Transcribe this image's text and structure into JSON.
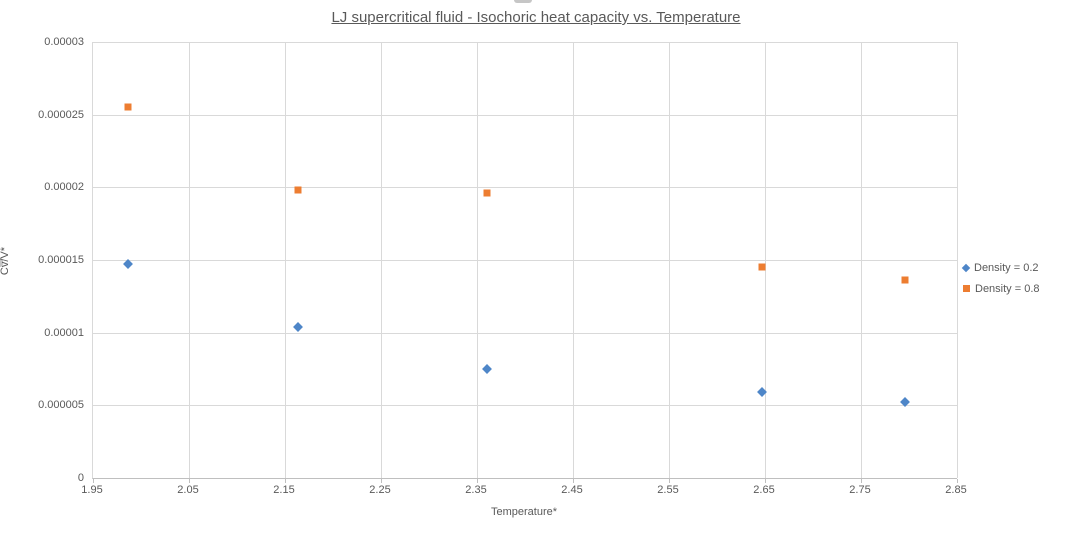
{
  "chart_data": {
    "type": "scatter",
    "title": "LJ supercritical fluid - Isochoric heat capacity vs. Temperature",
    "xlabel": "Temperature*",
    "ylabel": "Cv/V*",
    "xlim": [
      1.95,
      2.85
    ],
    "ylim": [
      0,
      3e-05
    ],
    "grid": true,
    "legend_position": "right",
    "x_ticks": [
      {
        "v": 1.95,
        "label": "1.95"
      },
      {
        "v": 2.05,
        "label": "2.05"
      },
      {
        "v": 2.15,
        "label": "2.15"
      },
      {
        "v": 2.25,
        "label": "2.25"
      },
      {
        "v": 2.35,
        "label": "2.35"
      },
      {
        "v": 2.45,
        "label": "2.45"
      },
      {
        "v": 2.55,
        "label": "2.55"
      },
      {
        "v": 2.65,
        "label": "2.65"
      },
      {
        "v": 2.75,
        "label": "2.75"
      },
      {
        "v": 2.85,
        "label": "2.85"
      }
    ],
    "y_ticks": [
      {
        "v": 0,
        "label": "0"
      },
      {
        "v": 5e-06,
        "label": "0.000005"
      },
      {
        "v": 1e-05,
        "label": "0.00001"
      },
      {
        "v": 1.5e-05,
        "label": "0.000015"
      },
      {
        "v": 2e-05,
        "label": "0.00002"
      },
      {
        "v": 2.5e-05,
        "label": "0.000025"
      },
      {
        "v": 3e-05,
        "label": "0.00003"
      }
    ],
    "series": [
      {
        "name": "Density = 0.2",
        "marker": "diamond",
        "color": "#4E86C8",
        "points": [
          [
            1.986,
            1.47e-05
          ],
          [
            2.164,
            1.04e-05
          ],
          [
            2.36,
            7.5e-06
          ],
          [
            2.647,
            5.9e-06
          ],
          [
            2.796,
            5.2e-06
          ]
        ]
      },
      {
        "name": "Density = 0.8",
        "marker": "square",
        "color": "#ED7D31",
        "points": [
          [
            1.986,
            2.55e-05
          ],
          [
            2.164,
            1.98e-05
          ],
          [
            2.36,
            1.96e-05
          ],
          [
            2.647,
            1.45e-05
          ],
          [
            2.796,
            1.36e-05
          ]
        ]
      }
    ]
  }
}
